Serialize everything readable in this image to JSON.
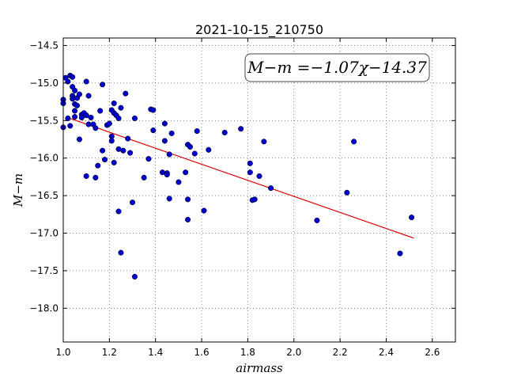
{
  "chart_data": {
    "type": "scatter",
    "title": "2021-10-15_210750",
    "xlabel": "airmass",
    "ylabel": "M−m",
    "xlim": [
      1.0,
      2.7
    ],
    "ylim": [
      -18.45,
      -14.4
    ],
    "y_inverted": true,
    "grid": true,
    "x_ticks": [
      "1.0",
      "1.2",
      "1.4",
      "1.6",
      "1.8",
      "2.0",
      "2.2",
      "2.4",
      "2.6"
    ],
    "x_tick_values": [
      1.0,
      1.2,
      1.4,
      1.6,
      1.8,
      2.0,
      2.2,
      2.4,
      2.6
    ],
    "y_ticks": [
      "−14.5",
      "−15.0",
      "−15.5",
      "−16.0",
      "−16.5",
      "−17.0",
      "−17.5",
      "−18.0"
    ],
    "y_tick_values": [
      -14.5,
      -15.0,
      -15.5,
      -16.0,
      -16.5,
      -17.0,
      -17.5,
      -18.0
    ],
    "annotation": "M−m =−1.07χ−14.37",
    "annotation_placement": "top-right",
    "fit": {
      "slope": -1.07,
      "intercept": -14.37,
      "x_range": [
        1.02,
        2.52
      ],
      "color": "#dd0000"
    },
    "point_color": "#0000cc",
    "points": [
      [
        1.0,
        -15.59
      ],
      [
        1.0,
        -15.22
      ],
      [
        1.0,
        -15.27
      ],
      [
        1.01,
        -14.93
      ],
      [
        1.02,
        -14.98
      ],
      [
        1.02,
        -15.47
      ],
      [
        1.03,
        -14.9
      ],
      [
        1.03,
        -15.57
      ],
      [
        1.04,
        -14.92
      ],
      [
        1.04,
        -15.17
      ],
      [
        1.04,
        -15.05
      ],
      [
        1.04,
        -15.21
      ],
      [
        1.05,
        -15.1
      ],
      [
        1.05,
        -15.28
      ],
      [
        1.05,
        -15.37
      ],
      [
        1.05,
        -15.45
      ],
      [
        1.06,
        -15.2
      ],
      [
        1.06,
        -15.3
      ],
      [
        1.07,
        -15.15
      ],
      [
        1.07,
        -15.75
      ],
      [
        1.08,
        -15.42
      ],
      [
        1.08,
        -15.46
      ],
      [
        1.09,
        -15.4
      ],
      [
        1.1,
        -15.43
      ],
      [
        1.1,
        -14.98
      ],
      [
        1.1,
        -16.24
      ],
      [
        1.11,
        -15.17
      ],
      [
        1.11,
        -15.55
      ],
      [
        1.12,
        -15.46
      ],
      [
        1.13,
        -15.55
      ],
      [
        1.14,
        -15.6
      ],
      [
        1.14,
        -16.26
      ],
      [
        1.15,
        -16.1
      ],
      [
        1.16,
        -15.37
      ],
      [
        1.17,
        -15.02
      ],
      [
        1.17,
        -15.9
      ],
      [
        1.18,
        -16.02
      ],
      [
        1.19,
        -15.56
      ],
      [
        1.2,
        -15.54
      ],
      [
        1.21,
        -15.36
      ],
      [
        1.21,
        -15.71
      ],
      [
        1.21,
        -15.77
      ],
      [
        1.22,
        -15.27
      ],
      [
        1.22,
        -15.4
      ],
      [
        1.22,
        -16.06
      ],
      [
        1.23,
        -15.43
      ],
      [
        1.24,
        -15.88
      ],
      [
        1.24,
        -15.47
      ],
      [
        1.24,
        -16.71
      ],
      [
        1.25,
        -15.33
      ],
      [
        1.25,
        -17.26
      ],
      [
        1.26,
        -15.9
      ],
      [
        1.27,
        -15.14
      ],
      [
        1.28,
        -15.74
      ],
      [
        1.29,
        -15.93
      ],
      [
        1.3,
        -16.59
      ],
      [
        1.31,
        -15.47
      ],
      [
        1.31,
        -17.58
      ],
      [
        1.35,
        -16.26
      ],
      [
        1.37,
        -16.01
      ],
      [
        1.38,
        -15.35
      ],
      [
        1.39,
        -15.36
      ],
      [
        1.39,
        -15.63
      ],
      [
        1.43,
        -16.19
      ],
      [
        1.44,
        -15.54
      ],
      [
        1.44,
        -15.77
      ],
      [
        1.45,
        -16.2
      ],
      [
        1.45,
        -16.22
      ],
      [
        1.46,
        -15.95
      ],
      [
        1.46,
        -16.54
      ],
      [
        1.47,
        -15.67
      ],
      [
        1.5,
        -16.32
      ],
      [
        1.53,
        -16.19
      ],
      [
        1.54,
        -15.82
      ],
      [
        1.54,
        -16.55
      ],
      [
        1.54,
        -16.82
      ],
      [
        1.55,
        -15.85
      ],
      [
        1.57,
        -15.94
      ],
      [
        1.58,
        -15.64
      ],
      [
        1.61,
        -16.7
      ],
      [
        1.63,
        -15.89
      ],
      [
        1.7,
        -15.66
      ],
      [
        1.77,
        -15.61
      ],
      [
        1.81,
        -16.07
      ],
      [
        1.81,
        -16.19
      ],
      [
        1.82,
        -16.56
      ],
      [
        1.83,
        -16.55
      ],
      [
        1.85,
        -16.24
      ],
      [
        1.87,
        -15.78
      ],
      [
        1.9,
        -16.4
      ],
      [
        2.1,
        -16.83
      ],
      [
        2.23,
        -16.46
      ],
      [
        2.26,
        -15.78
      ],
      [
        2.46,
        -17.27
      ],
      [
        2.51,
        -16.79
      ]
    ]
  }
}
